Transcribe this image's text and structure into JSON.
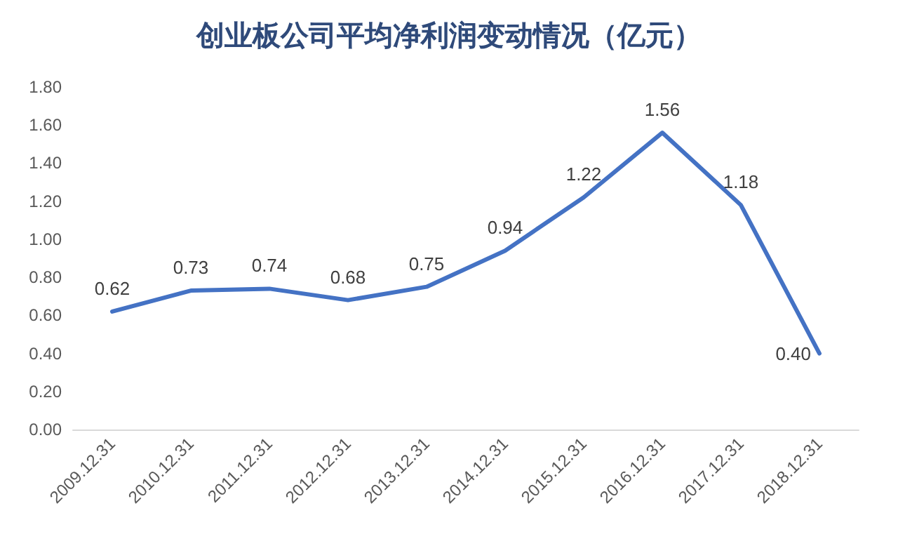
{
  "chart_data": {
    "type": "line",
    "title": "创业板公司平均净利润变动情况（亿元）",
    "categories": [
      "2009.12.31",
      "2010.12.31",
      "2011.12.31",
      "2012.12.31",
      "2013.12.31",
      "2014.12.31",
      "2015.12.31",
      "2016.12.31",
      "2017.12.31",
      "2018.12.31"
    ],
    "series": [
      {
        "color": "#4472c4",
        "values": [
          0.62,
          0.73,
          0.74,
          0.68,
          0.75,
          0.94,
          1.22,
          1.56,
          1.18,
          0.4
        ],
        "value_labels": [
          "0.62",
          "0.73",
          "0.74",
          "0.68",
          "0.75",
          "0.94",
          "1.22",
          "1.56",
          "1.18",
          "0.40"
        ]
      }
    ],
    "ylim": [
      0,
      1.8
    ],
    "yticks": [
      {
        "value": 0,
        "label": "0.00"
      },
      {
        "value": 0.2,
        "label": "0.20"
      },
      {
        "value": 0.4,
        "label": "0.40"
      },
      {
        "value": 0.6,
        "label": "0.60"
      },
      {
        "value": 0.8,
        "label": "0.80"
      },
      {
        "value": 1,
        "label": "1.00"
      },
      {
        "value": 1.2,
        "label": "1.20"
      },
      {
        "value": 1.4,
        "label": "1.40"
      },
      {
        "value": 1.6,
        "label": "1.60"
      },
      {
        "value": 1.8,
        "label": "1.80"
      }
    ],
    "marker": "none",
    "line_style": "solid",
    "grid": false
  }
}
